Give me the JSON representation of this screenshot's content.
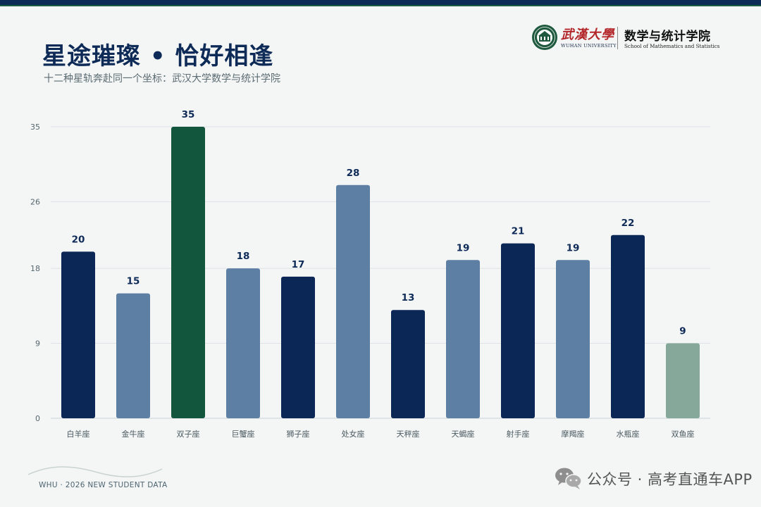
{
  "header": {
    "title": "星途璀璨 • 恰好相逢",
    "subtitle": "十二种星轨奔赴同一个坐标：武汉大学数学与统计学院"
  },
  "logo": {
    "university_cn": "武漢大學",
    "university_en": "WUHAN UNIVERSITY",
    "school_cn": "数学与统计学院",
    "school_en": "School of Mathematics and Statistics"
  },
  "footer": {
    "text": "WHU · 2026 NEW STUDENT DATA"
  },
  "watermark": {
    "text": "公众号 · 高考直通车APP",
    "icon": "wechat-icon"
  },
  "colors": {
    "navy": "#0b2756",
    "steel": "#5d7fa4",
    "highlight_green": "#12563d",
    "sage": "#86a89b",
    "title": "#0e2a57"
  },
  "chart_data": {
    "type": "bar",
    "title": "",
    "xlabel": "",
    "ylabel": "",
    "ylim": [
      0,
      35
    ],
    "yticks": [
      0,
      9,
      18,
      26,
      35
    ],
    "grid": true,
    "categories": [
      "白羊座",
      "金牛座",
      "双子座",
      "巨蟹座",
      "狮子座",
      "处女座",
      "天秤座",
      "天蝎座",
      "射手座",
      "摩羯座",
      "水瓶座",
      "双鱼座"
    ],
    "values": [
      20,
      15,
      35,
      18,
      17,
      28,
      13,
      19,
      21,
      19,
      22,
      9
    ],
    "bar_colors": [
      "#0b2756",
      "#5d7fa4",
      "#12563d",
      "#5d7fa4",
      "#0b2756",
      "#5d7fa4",
      "#0b2756",
      "#5d7fa4",
      "#0b2756",
      "#5d7fa4",
      "#0b2756",
      "#86a89b"
    ],
    "data_labels": true
  }
}
